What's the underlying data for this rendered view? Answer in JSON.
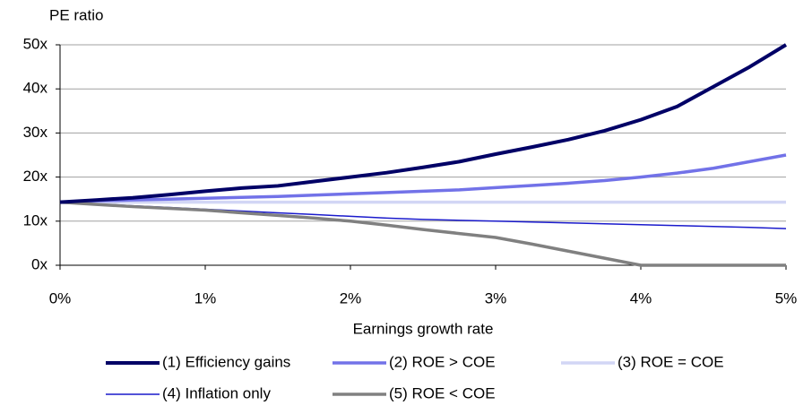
{
  "chart_data": {
    "type": "line",
    "y_label": "PE ratio",
    "x_label": "Earnings growth rate",
    "x": [
      0,
      0.25,
      0.5,
      0.75,
      1,
      1.25,
      1.5,
      1.75,
      2,
      2.25,
      2.5,
      2.75,
      3,
      3.25,
      3.5,
      3.75,
      4,
      4.25,
      4.5,
      4.75,
      5
    ],
    "xlim": [
      0,
      5
    ],
    "xticks": [
      {
        "value": 0,
        "label": "0%"
      },
      {
        "value": 1,
        "label": "1%"
      },
      {
        "value": 2,
        "label": "2%"
      },
      {
        "value": 3,
        "label": "3%"
      },
      {
        "value": 4,
        "label": "4%"
      },
      {
        "value": 5,
        "label": "5%"
      }
    ],
    "ylim": [
      0,
      50
    ],
    "yticks": [
      {
        "value": 0,
        "label": "0x"
      },
      {
        "value": 10,
        "label": "10x"
      },
      {
        "value": 20,
        "label": "20x"
      },
      {
        "value": 30,
        "label": "30x"
      },
      {
        "value": 40,
        "label": "40x"
      },
      {
        "value": 50,
        "label": "50x"
      }
    ],
    "grid": true,
    "legend": "bottom",
    "series": [
      {
        "name": "(1) Efficiency gains",
        "color": "#000066",
        "values": [
          14.3,
          14.8,
          15.3,
          16,
          16.8,
          17.5,
          18,
          19,
          20,
          21,
          22.2,
          23.5,
          25.2,
          26.8,
          28.5,
          30.5,
          33,
          36,
          40.5,
          45,
          50
        ]
      },
      {
        "name": "(2) ROE > COE",
        "color": "#7272e8",
        "values": [
          14.3,
          14.6,
          14.8,
          15,
          15.2,
          15.4,
          15.6,
          15.9,
          16.2,
          16.5,
          16.8,
          17.1,
          17.6,
          18.1,
          18.6,
          19.2,
          20,
          20.9,
          22,
          23.5,
          25
        ]
      },
      {
        "name": "(3) ROE = COE",
        "color": "#d2d6f5",
        "values": [
          14.3,
          14.3,
          14.3,
          14.3,
          14.3,
          14.3,
          14.3,
          14.3,
          14.3,
          14.3,
          14.3,
          14.3,
          14.3,
          14.3,
          14.3,
          14.3,
          14.3,
          14.3,
          14.3,
          14.3,
          14.3
        ]
      },
      {
        "name": "(4) Inflation only",
        "color": "#1a1acc",
        "values": [
          14.3,
          13.9,
          13.5,
          13.1,
          12.7,
          12.3,
          11.9,
          11.5,
          11.1,
          10.7,
          10.4,
          10.2,
          10,
          9.8,
          9.6,
          9.4,
          9.2,
          9,
          8.8,
          8.6,
          8.3
        ]
      },
      {
        "name": "(5) ROE < COE",
        "color": "#808080",
        "values": [
          14.3,
          13.8,
          13.3,
          12.9,
          12.5,
          11.9,
          11.3,
          10.7,
          10,
          9.1,
          8.1,
          7.2,
          6.3,
          4.8,
          3.2,
          1.6,
          0,
          0,
          0,
          0,
          0
        ]
      }
    ]
  }
}
